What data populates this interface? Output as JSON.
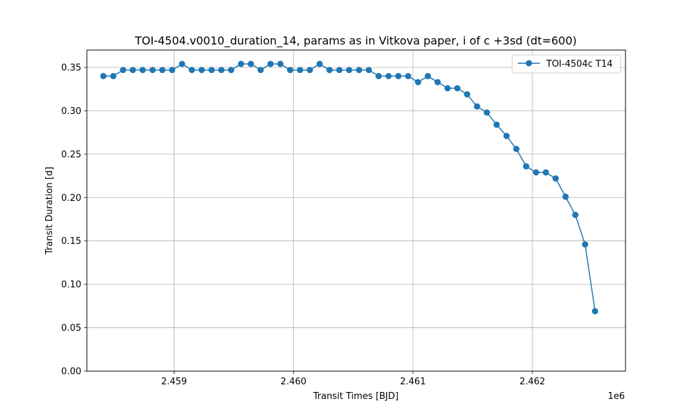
{
  "chart_data": {
    "type": "line",
    "title": "TOI-4504.v0010_duration_14, params as in Vitkova paper, i of c +3sd (dt=600)",
    "xlabel": "Transit Times [BJD]",
    "ylabel": "Transit Duration [d]",
    "x_offset_label": "1e6",
    "xlim": [
      2458270,
      2462780
    ],
    "ylim": [
      0.0,
      0.37
    ],
    "x_ticks": [
      2459000,
      2460000,
      2461000,
      2462000
    ],
    "x_tick_labels": [
      "2.459",
      "2.460",
      "2.461",
      "2.462"
    ],
    "y_ticks": [
      0.0,
      0.05,
      0.1,
      0.15,
      0.2,
      0.25,
      0.3,
      0.35
    ],
    "y_tick_labels": [
      "0.00",
      "0.05",
      "0.10",
      "0.15",
      "0.20",
      "0.25",
      "0.30",
      "0.35"
    ],
    "grid": true,
    "legend_position": "top-right",
    "color": "#1f77b4",
    "series": [
      {
        "name": "TOI-4504c T14",
        "x": [
          2458408,
          2458491,
          2458573,
          2458655,
          2458737,
          2458820,
          2458902,
          2458984,
          2459067,
          2459149,
          2459231,
          2459314,
          2459396,
          2459478,
          2459561,
          2459643,
          2459725,
          2459808,
          2459890,
          2459972,
          2460055,
          2460137,
          2460219,
          2460302,
          2460384,
          2460466,
          2460549,
          2460631,
          2460713,
          2460796,
          2460878,
          2460960,
          2461043,
          2461125,
          2461207,
          2461290,
          2461372,
          2461454,
          2461537,
          2461619,
          2461701,
          2461784,
          2461866,
          2461948,
          2462031,
          2462113,
          2462195,
          2462278,
          2462360,
          2462442,
          2462525
        ],
        "y": [
          0.34,
          0.34,
          0.347,
          0.347,
          0.347,
          0.347,
          0.347,
          0.347,
          0.354,
          0.347,
          0.347,
          0.347,
          0.347,
          0.347,
          0.354,
          0.354,
          0.347,
          0.354,
          0.354,
          0.347,
          0.347,
          0.347,
          0.354,
          0.347,
          0.347,
          0.347,
          0.347,
          0.347,
          0.34,
          0.34,
          0.34,
          0.34,
          0.333,
          0.34,
          0.333,
          0.326,
          0.326,
          0.319,
          0.305,
          0.298,
          0.284,
          0.271,
          0.256,
          0.236,
          0.229,
          0.229,
          0.222,
          0.201,
          0.18,
          0.146,
          0.069
        ]
      }
    ]
  }
}
